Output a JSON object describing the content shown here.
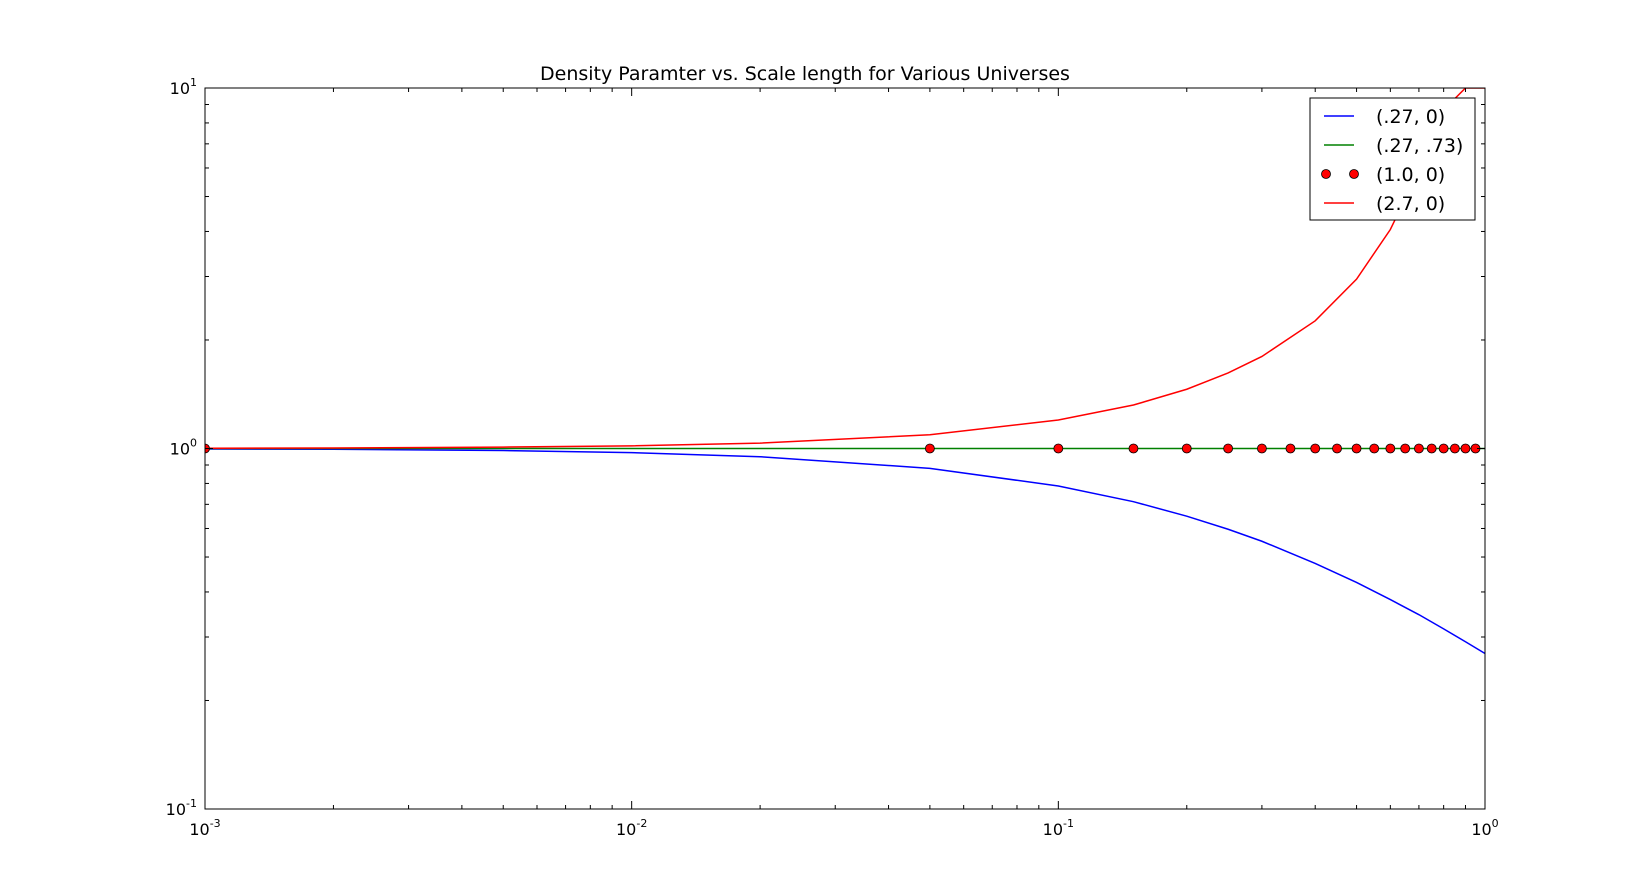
{
  "chart_data": {
    "type": "line",
    "title": "Density Paramter vs. Scale length for Various Universes",
    "xlabel": "",
    "ylabel": "",
    "xscale": "log",
    "yscale": "log",
    "xlim": [
      0.001,
      1.0
    ],
    "ylim": [
      0.1,
      10.0
    ],
    "grid": false,
    "legend_position": "top-right",
    "x_ticks": [
      {
        "base": "10",
        "exp": "-3"
      },
      {
        "base": "10",
        "exp": "-2"
      },
      {
        "base": "10",
        "exp": "-1"
      },
      {
        "base": "10",
        "exp": "0"
      }
    ],
    "y_ticks": [
      {
        "base": "10",
        "exp": "-1"
      },
      {
        "base": "10",
        "exp": "0"
      },
      {
        "base": "10",
        "exp": "1"
      }
    ],
    "series": [
      {
        "name": "(.27, 0)",
        "color": "#0000ff",
        "style": "line",
        "x": [
          0.001,
          0.002,
          0.005,
          0.01,
          0.02,
          0.05,
          0.1,
          0.15,
          0.2,
          0.25,
          0.3,
          0.4,
          0.5,
          0.6,
          0.7,
          0.8,
          0.9,
          1.0
        ],
        "y": [
          0.997,
          0.995,
          0.987,
          0.974,
          0.949,
          0.881,
          0.787,
          0.712,
          0.649,
          0.597,
          0.553,
          0.48,
          0.425,
          0.381,
          0.346,
          0.316,
          0.291,
          0.27
        ]
      },
      {
        "name": "(.27, .73)",
        "color": "#008000",
        "style": "line",
        "x": [
          0.001,
          0.01,
          0.1,
          0.5,
          1.0
        ],
        "y": [
          1.0,
          1.0,
          1.0,
          1.0,
          1.0
        ]
      },
      {
        "name": "(1.0, 0)",
        "color": "#ff0000",
        "style": "markers",
        "x": [
          0.001,
          0.05,
          0.1,
          0.15,
          0.2,
          0.25,
          0.3,
          0.35,
          0.4,
          0.45,
          0.5,
          0.55,
          0.6,
          0.65,
          0.7,
          0.75,
          0.8,
          0.85,
          0.9,
          0.95
        ],
        "y": [
          1.0,
          1.0,
          1.0,
          1.0,
          1.0,
          1.0,
          1.0,
          1.0,
          1.0,
          1.0,
          1.0,
          1.0,
          1.0,
          1.0,
          1.0,
          1.0,
          1.0,
          1.0,
          1.0,
          1.0
        ]
      },
      {
        "name": "(2.7, 0)",
        "color": "#ff0000",
        "style": "line",
        "x": [
          0.001,
          0.002,
          0.005,
          0.01,
          0.02,
          0.05,
          0.1,
          0.15,
          0.2,
          0.25,
          0.3,
          0.4,
          0.5,
          0.6,
          0.7,
          0.8,
          0.9,
          1.0
        ],
        "y": [
          1.002,
          1.003,
          1.009,
          1.017,
          1.035,
          1.092,
          1.2,
          1.32,
          1.46,
          1.62,
          1.8,
          2.26,
          2.95,
          4.05,
          5.9,
          8.7,
          10.0,
          10.0
        ]
      }
    ]
  }
}
